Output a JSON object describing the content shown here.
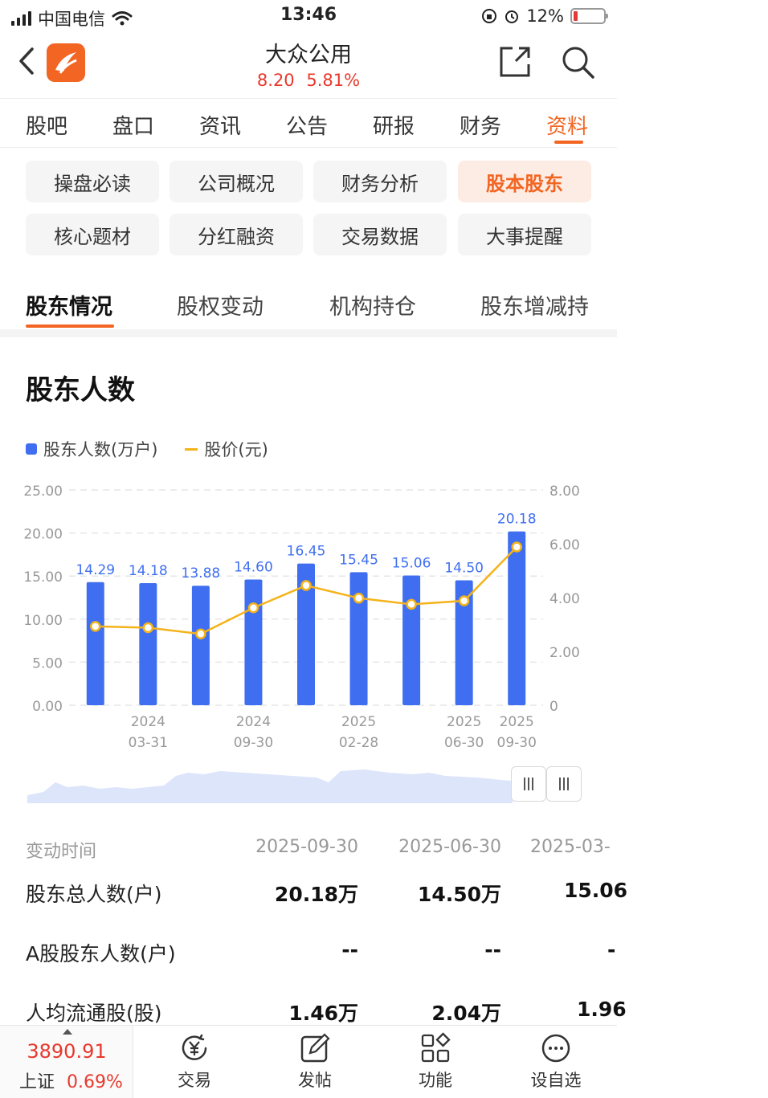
{
  "status_bar": {
    "carrier": "中国电信",
    "time": "13:46",
    "battery": "12%"
  },
  "header": {
    "title": "大众公用",
    "price": "8.20",
    "change_pct": "5.81%"
  },
  "main_tabs": [
    "股吧",
    "盘口",
    "资讯",
    "公告",
    "研报",
    "财务",
    "资料"
  ],
  "grid": [
    [
      "操盘必读",
      "公司概况",
      "财务分析",
      "股本股东"
    ],
    [
      "核心题材",
      "分红融资",
      "交易数据",
      "大事提醒"
    ]
  ],
  "sub_tabs": [
    "股东情况",
    "股权变动",
    "机构持仓",
    "股东增减持"
  ],
  "section_title": "股东人数",
  "legend": {
    "bar": "股东人数(万户)",
    "line": "股价(元)"
  },
  "chart_data": {
    "type": "bar",
    "left_axis": {
      "ticks": [
        "25.00",
        "20.00",
        "15.00",
        "10.00",
        "5.00",
        "0.00"
      ],
      "min": 0,
      "max": 25
    },
    "right_axis": {
      "ticks": [
        "8.00",
        "6.00",
        "4.00",
        "2.00",
        "0"
      ],
      "min": 0,
      "max": 8
    },
    "bars": [
      14.29,
      14.18,
      13.88,
      14.6,
      16.45,
      15.45,
      15.06,
      14.5,
      20.18
    ],
    "bar_labels": [
      "14.29",
      "14.18",
      "13.88",
      "14.60",
      "16.45",
      "15.45",
      "15.06",
      "14.50",
      "20.18"
    ],
    "line": [
      2.93,
      2.88,
      2.65,
      3.62,
      4.45,
      3.98,
      3.75,
      3.88,
      5.88
    ],
    "x_ticks": [
      {
        "index": 1,
        "year": "2024",
        "date": "03-31"
      },
      {
        "index": 3,
        "year": "2024",
        "date": "09-30"
      },
      {
        "index": 5,
        "year": "2025",
        "date": "02-28"
      },
      {
        "index": 7,
        "year": "2025",
        "date": "06-30"
      },
      {
        "index": 8,
        "year": "2025",
        "date": "09-30"
      }
    ],
    "grid": true,
    "bar_color": "#3f6ff0",
    "line_color": "#f5b31a"
  },
  "table": {
    "header": {
      "label": "变动时间",
      "cols": [
        "2025-09-30",
        "2025-06-30",
        "2025-03-"
      ]
    },
    "rows": [
      {
        "label": "股东总人数(户)",
        "cols": [
          "20.18万",
          "14.50万",
          "15.06"
        ]
      },
      {
        "label": "A股股东人数(户)",
        "cols": [
          "--",
          "--",
          "-"
        ]
      },
      {
        "label": "人均流通股(股)",
        "cols": [
          "1.46万",
          "2.04万",
          "1.96"
        ]
      }
    ]
  },
  "bottom_bar": {
    "index_value": "3890.91",
    "index_name": "上证",
    "index_change": "0.69%",
    "items": [
      "交易",
      "发帖",
      "功能",
      "设自选"
    ]
  }
}
